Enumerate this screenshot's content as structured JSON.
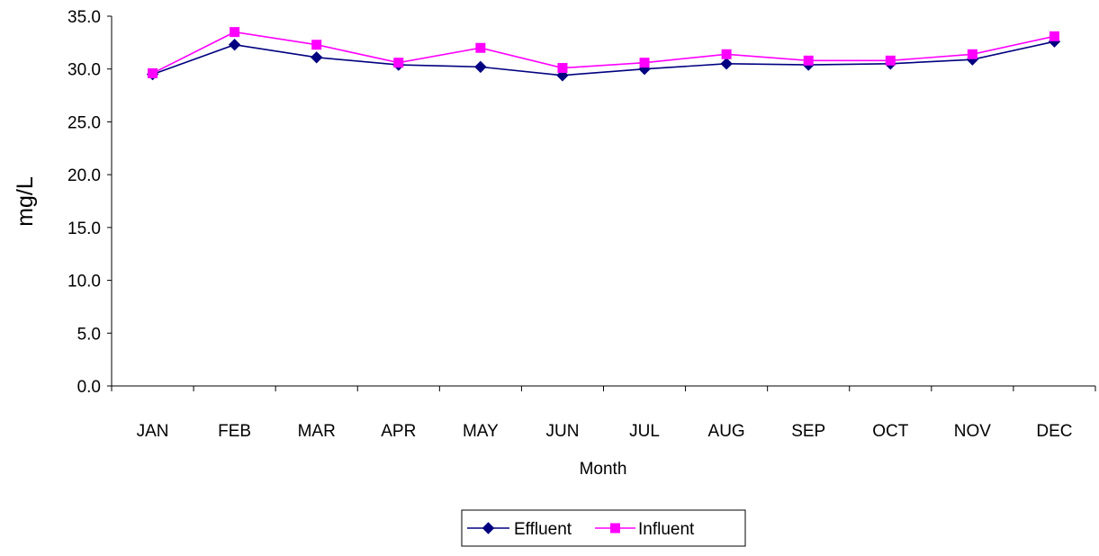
{
  "chart_data": {
    "type": "line",
    "title": "",
    "xlabel": "Month",
    "ylabel": "mg/L",
    "categories": [
      "JAN",
      "FEB",
      "MAR",
      "APR",
      "MAY",
      "JUN",
      "JUL",
      "AUG",
      "SEP",
      "OCT",
      "NOV",
      "DEC"
    ],
    "ylim": [
      0.0,
      35.0
    ],
    "yticks": [
      "0.0",
      "5.0",
      "10.0",
      "15.0",
      "20.0",
      "25.0",
      "30.0",
      "35.0"
    ],
    "grid": false,
    "legend_position": "bottom",
    "series": [
      {
        "name": "Effluent",
        "color": "#000080",
        "marker": "diamond",
        "values": [
          29.5,
          32.3,
          31.1,
          30.4,
          30.2,
          29.4,
          30.0,
          30.5,
          30.4,
          30.5,
          30.9,
          32.6
        ]
      },
      {
        "name": "Influent",
        "color": "#FF00FF",
        "marker": "square",
        "values": [
          29.6,
          33.5,
          32.3,
          30.6,
          32.0,
          30.1,
          30.6,
          31.4,
          30.8,
          30.8,
          31.4,
          33.1
        ]
      }
    ]
  }
}
